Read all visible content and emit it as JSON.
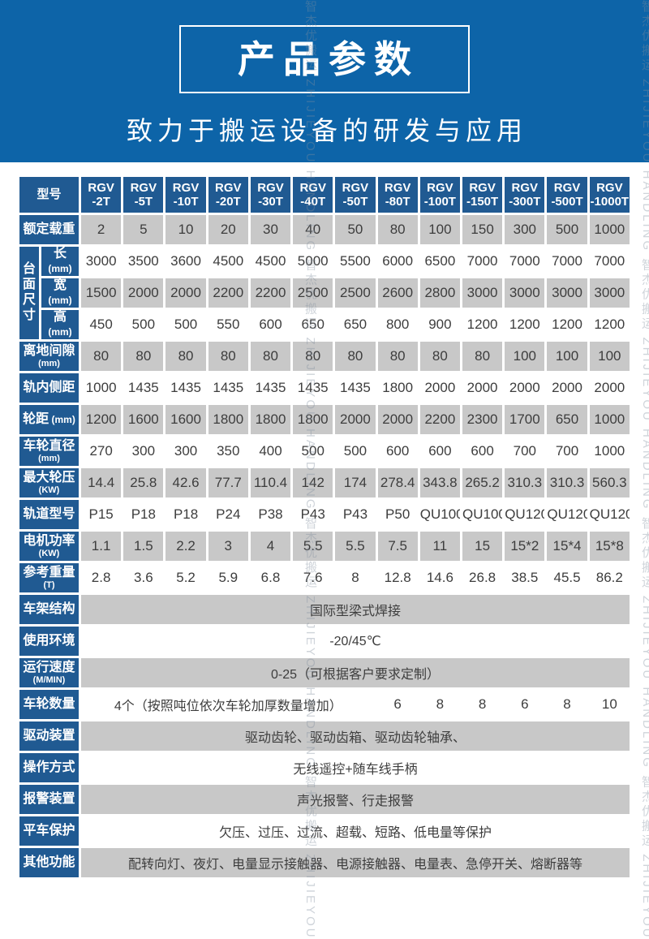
{
  "theme": {
    "banner_blue": "#0d64a8",
    "table_blue": "#205a92",
    "row_gray": "#c8c8c8",
    "text_dark": "#3d3d3d"
  },
  "banner": {
    "title": "产品参数",
    "subtitle": "致力于搬运设备的研发与应用"
  },
  "watermark": {
    "text": "智杰优搬运 ZHIJIEYOU HANDLING "
  },
  "table": {
    "header": {
      "label": "型号",
      "model_prefix": "RGV",
      "models": [
        "-2T",
        "-5T",
        "-10T",
        "-20T",
        "-30T",
        "-40T",
        "-50T",
        "-80T",
        "-100T",
        "-150T",
        "-300T",
        "-500T",
        "-1000T"
      ]
    },
    "rows": [
      {
        "kind": "spec",
        "label": "额定载重",
        "values": [
          "2",
          "5",
          "10",
          "20",
          "30",
          "40",
          "50",
          "80",
          "100",
          "150",
          "300",
          "500",
          "1000"
        ]
      },
      {
        "kind": "spec",
        "group": "台面尺寸",
        "groupSpan": 3,
        "label": "长",
        "unit": "(mm)",
        "inline": true,
        "values": [
          "3000",
          "3500",
          "3600",
          "4500",
          "4500",
          "5000",
          "5500",
          "6000",
          "6500",
          "7000",
          "7000",
          "7000",
          "7000"
        ]
      },
      {
        "kind": "spec",
        "inGroup": true,
        "label": "宽",
        "unit": "(mm)",
        "inline": true,
        "values": [
          "1500",
          "2000",
          "2000",
          "2200",
          "2200",
          "2500",
          "2500",
          "2600",
          "2800",
          "3000",
          "3000",
          "3000",
          "3000"
        ]
      },
      {
        "kind": "spec",
        "inGroup": true,
        "label": "高",
        "unit": "(mm)",
        "inline": true,
        "values": [
          "450",
          "500",
          "500",
          "550",
          "600",
          "650",
          "650",
          "800",
          "900",
          "1200",
          "1200",
          "1200",
          "1200"
        ]
      },
      {
        "kind": "spec",
        "label": "离地间隙",
        "unit": "(mm)",
        "values": [
          "80",
          "80",
          "80",
          "80",
          "80",
          "80",
          "80",
          "80",
          "80",
          "80",
          "100",
          "100",
          "100"
        ]
      },
      {
        "kind": "spec",
        "label": "轨内侧距",
        "values": [
          "1000",
          "1435",
          "1435",
          "1435",
          "1435",
          "1435",
          "1435",
          "1800",
          "2000",
          "2000",
          "2000",
          "2000",
          "2000"
        ]
      },
      {
        "kind": "spec",
        "label": "轮距",
        "unit": "(mm)",
        "inline": true,
        "values": [
          "1200",
          "1600",
          "1600",
          "1800",
          "1800",
          "1800",
          "2000",
          "2000",
          "2200",
          "2300",
          "1700",
          "650",
          "1000"
        ]
      },
      {
        "kind": "spec",
        "label": "车轮直径",
        "unit": "(mm)",
        "values": [
          "270",
          "300",
          "300",
          "350",
          "400",
          "500",
          "500",
          "600",
          "600",
          "600",
          "700",
          "700",
          "1000"
        ]
      },
      {
        "kind": "spec",
        "label": "最大轮压",
        "unit": "(KW)",
        "values": [
          "14.4",
          "25.8",
          "42.6",
          "77.7",
          "110.4",
          "142",
          "174",
          "278.4",
          "343.8",
          "265.2",
          "310.3",
          "310.3",
          "560.3"
        ]
      },
      {
        "kind": "spec",
        "label": "轨道型号",
        "values": [
          "P15",
          "P18",
          "P18",
          "P24",
          "P38",
          "P43",
          "P43",
          "P50",
          "QU100",
          "QU100",
          "QU120",
          "QU120",
          "QU120"
        ]
      },
      {
        "kind": "spec",
        "label": "电机功率",
        "unit": "(KW)",
        "values": [
          "1.1",
          "1.5",
          "2.2",
          "3",
          "4",
          "5.5",
          "5.5",
          "7.5",
          "11",
          "15",
          "15*2",
          "15*4",
          "15*8"
        ]
      },
      {
        "kind": "spec",
        "label": "参考重量",
        "unit": "(T)",
        "values": [
          "2.8",
          "3.6",
          "5.2",
          "5.9",
          "6.8",
          "7.6",
          "8",
          "12.8",
          "14.6",
          "26.8",
          "38.5",
          "45.5",
          "86.2"
        ]
      },
      {
        "kind": "span",
        "label": "车架结构",
        "text": "国际型梁式焊接"
      },
      {
        "kind": "span",
        "label": "使用环境",
        "text": "-20/45℃"
      },
      {
        "kind": "span",
        "label": "运行速度",
        "unit": "(M/MIN)",
        "text": "0-25（可根据客户要求定制）"
      },
      {
        "kind": "mixed",
        "label": "车轮数量",
        "text": "4个（按照吨位依次车轮加厚数量增加）",
        "textSpan": 7,
        "values": [
          "6",
          "8",
          "8",
          "6",
          "8",
          "10"
        ]
      },
      {
        "kind": "span",
        "label": "驱动装置",
        "text": "驱动齿轮、驱动齿箱、驱动齿轮轴承、"
      },
      {
        "kind": "span",
        "label": "操作方式",
        "text": "无线遥控+随车线手柄"
      },
      {
        "kind": "span",
        "label": "报警装置",
        "text": "声光报警、行走报警"
      },
      {
        "kind": "span",
        "label": "平车保护",
        "text": "欠压、过压、过流、超载、短路、低电量等保护"
      },
      {
        "kind": "span",
        "label": "其他功能",
        "text": "配转向灯、夜灯、电量显示接触器、电源接触器、电量表、急停开关、熔断器等"
      }
    ]
  }
}
